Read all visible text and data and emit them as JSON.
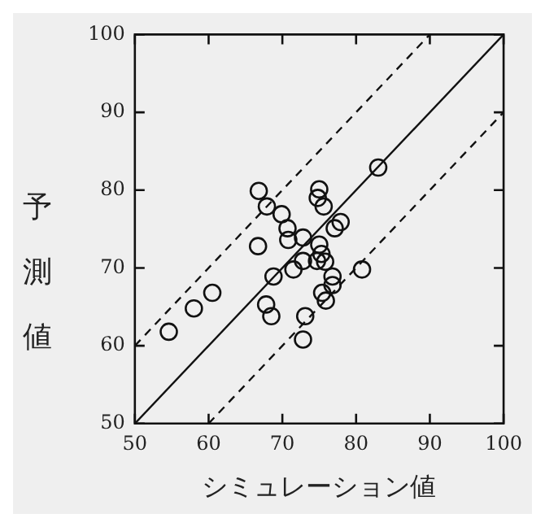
{
  "chart_data": {
    "type": "scatter",
    "xlabel": "シミュレーション値",
    "ylabel": "予測値",
    "xlim": [
      50,
      100
    ],
    "ylim": [
      50,
      100
    ],
    "xticks": [
      50,
      60,
      70,
      80,
      90,
      100
    ],
    "yticks": [
      50,
      60,
      70,
      80,
      90,
      100
    ],
    "grid": false,
    "legend": false,
    "marker": "circle",
    "series": [
      {
        "color": "#111111",
        "x": [
          54.6,
          58.0,
          60.5,
          66.8,
          67.9,
          66.7,
          67.8,
          68.5,
          68.8,
          69.9,
          70.7,
          70.8,
          71.5,
          72.8,
          72.8,
          73.1,
          72.8,
          75.0,
          74.8,
          75.6,
          75.0,
          75.3,
          74.7,
          75.8,
          75.4,
          75.9,
          76.8,
          76.8,
          77.1,
          77.9,
          80.8,
          83.0
        ],
        "values": [
          61.8,
          64.8,
          66.8,
          79.9,
          77.9,
          72.8,
          65.3,
          63.8,
          68.9,
          76.9,
          75.1,
          73.6,
          69.8,
          73.9,
          70.9,
          63.8,
          60.8,
          80.1,
          79.0,
          77.9,
          73.0,
          71.8,
          70.9,
          70.8,
          66.8,
          65.8,
          68.9,
          67.8,
          75.1,
          75.9,
          69.8,
          82.9
        ]
      },
      {
        "type": "line",
        "color": "#111111",
        "line_style": "solid",
        "marker": "none",
        "x": [
          50,
          100
        ],
        "values": [
          50,
          100
        ]
      },
      {
        "type": "line",
        "color": "#111111",
        "line_style": "dashed",
        "marker": "none",
        "x": [
          50,
          90
        ],
        "values": [
          60,
          100
        ]
      },
      {
        "type": "line",
        "color": "#111111",
        "line_style": "dashed",
        "marker": "none",
        "x": [
          60,
          100
        ],
        "values": [
          50,
          90
        ]
      }
    ]
  }
}
